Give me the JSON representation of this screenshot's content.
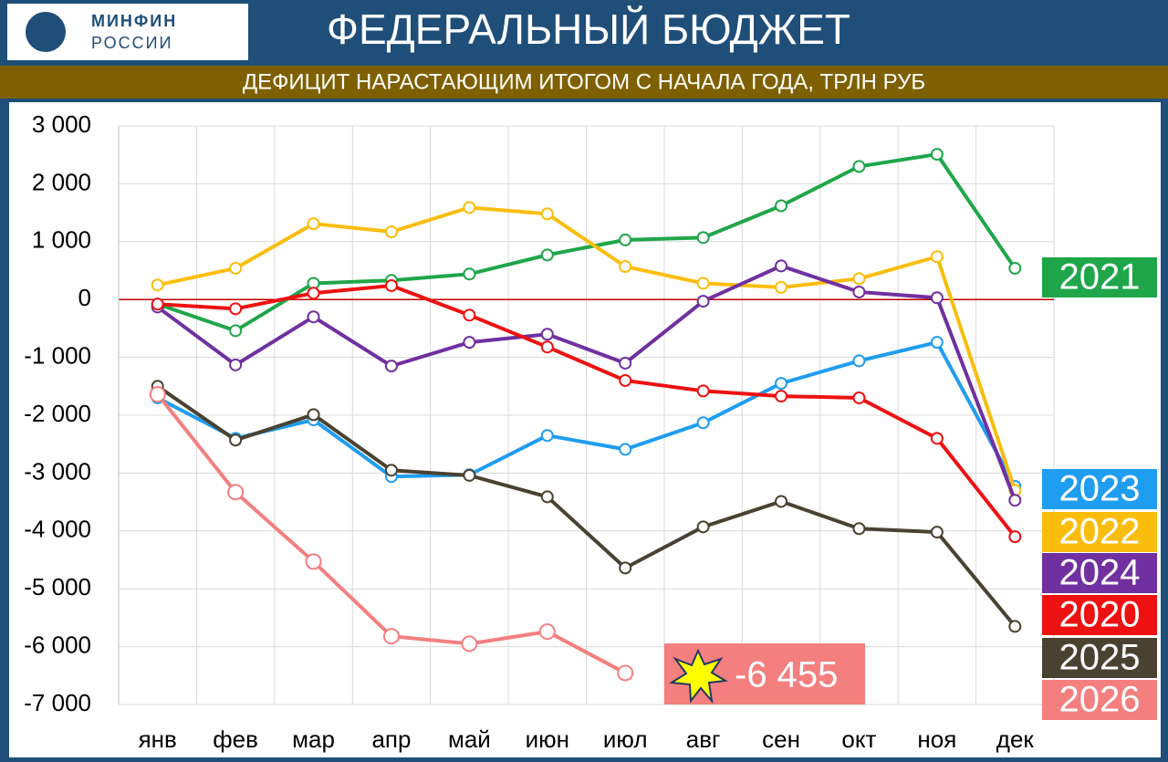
{
  "header": {
    "logo_line1": "МИНФИН",
    "logo_line2": "РОССИИ",
    "title": "ФЕДЕРАЛЬНЫЙ БЮДЖЕТ"
  },
  "chart_data": {
    "type": "line",
    "title": "ДЕФИЦИТ НАРАСТАЮЩИМ ИТОГОМ С НАЧАЛА ГОДА, ТРЛН РУБ",
    "categories": [
      "янв",
      "фев",
      "мар",
      "апр",
      "май",
      "июн",
      "июл",
      "авг",
      "сен",
      "окт",
      "ноя",
      "дек"
    ],
    "ylim": [
      -7000,
      3000
    ],
    "yticks": [
      {
        "value": -7000,
        "label": "-7 000"
      },
      {
        "value": -6000,
        "label": "-6 000"
      },
      {
        "value": -5000,
        "label": "-5 000"
      },
      {
        "value": -4000,
        "label": "-4 000"
      },
      {
        "value": -3000,
        "label": "-3 000"
      },
      {
        "value": -2000,
        "label": "-2 000"
      },
      {
        "value": -1000,
        "label": "-1 000"
      },
      0,
      {
        "value": 1000,
        "label": "1 000"
      },
      {
        "value": 2000,
        "label": "2 000"
      },
      {
        "value": 3000,
        "label": "3 000"
      }
    ],
    "grid": true,
    "series": [
      {
        "name": "2021",
        "color": "#1fa64a",
        "values": [
          -80,
          -540,
          280,
          330,
          440,
          770,
          1030,
          1070,
          1620,
          2300,
          2510,
          540
        ]
      },
      {
        "name": "2023",
        "color": "#1f9df0",
        "values": [
          -1700,
          -2400,
          -2080,
          -3060,
          -3030,
          -2350,
          -2590,
          -2130,
          -1450,
          -1060,
          -740,
          -3230
        ]
      },
      {
        "name": "2022",
        "color": "#fbbd0d",
        "values": [
          250,
          540,
          1310,
          1170,
          1590,
          1480,
          570,
          280,
          210,
          360,
          740,
          -3300
        ]
      },
      {
        "name": "2024",
        "color": "#7030a0",
        "values": [
          -130,
          -1130,
          -300,
          -1150,
          -740,
          -600,
          -1100,
          -30,
          580,
          130,
          30,
          -3470
        ]
      },
      {
        "name": "2020",
        "color": "#ee1111",
        "values": [
          -80,
          -160,
          110,
          240,
          -270,
          -820,
          -1400,
          -1580,
          -1670,
          -1700,
          -2400,
          -4100
        ]
      },
      {
        "name": "2025",
        "color": "#4a4231",
        "values": [
          -1500,
          -2430,
          -1990,
          -2950,
          -3040,
          -3410,
          -4640,
          -3930,
          -3490,
          -3960,
          -4020,
          -5650
        ]
      },
      {
        "name": "2026",
        "color": "#f47f7f",
        "values": [
          -1640,
          -3330,
          -4530,
          -5820,
          -5950,
          -5740,
          -6455,
          null,
          null,
          null,
          null,
          null
        ]
      }
    ],
    "annotation": "-6 455"
  }
}
